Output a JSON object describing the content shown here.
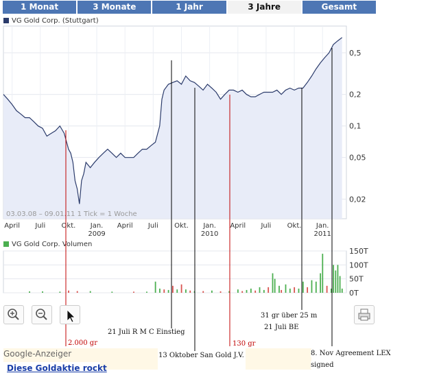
{
  "tabs": [
    {
      "label": "1 Monat",
      "active": false
    },
    {
      "label": "3 Monate",
      "active": false
    },
    {
      "label": "1 Jahr",
      "active": false
    },
    {
      "label": "3 Jahre",
      "active": true
    },
    {
      "label": "Gesamt",
      "active": false
    }
  ],
  "price_legend": "VG Gold Corp. (Stuttgart)",
  "volume_legend": "VG Gold Corp. Volumen",
  "range_note": "03.03.08 – 09.01.11   1 Tick = 1 Woche",
  "ads_label": "Google-Anzeiger",
  "ad_headline": "Diese Goldaktie rockt",
  "annotations": {
    "a_2000": "2.000 gr",
    "a_rmc": "21 Juli R M C Einstieg",
    "a_sangold": "13 Oktober San Gold J.V.",
    "a_130": "130 gr",
    "a_31gr": "31 gr über 25 m",
    "a_be": "21 Juli BE",
    "a_nov1": "8. Nov Agreement LEX",
    "a_nov2": "signed"
  },
  "colors": {
    "tab": "#4d76b4",
    "line": "#2b3b6b",
    "fill": "#e8ecf8",
    "vol_up": "#4caf50",
    "vol_down": "#d9534f",
    "annot_red": "#c00000"
  },
  "chart_data": [
    {
      "type": "area",
      "series": [
        {
          "name": "VG Gold Corp. (Stuttgart)"
        }
      ],
      "x_tick_labels": [
        "April",
        "Juli",
        "Okt.",
        "Jan.",
        "April",
        "Juli",
        "Okt.",
        "Jan.",
        "April",
        "Juli",
        "Okt.",
        "Jan."
      ],
      "year_labels": [
        "2009",
        "2010",
        "2011"
      ],
      "y_scale": "log",
      "y_ticks": [
        0.02,
        0.05,
        0.1,
        0.2,
        0.5
      ],
      "y_tick_labels": [
        "0,02",
        "0,05",
        "0,1",
        "0,2",
        "0,5"
      ],
      "grid": true,
      "x_weeks": [
        0,
        2,
        4,
        6,
        8,
        10,
        12,
        14,
        16,
        18,
        20,
        22,
        24,
        26,
        28,
        30,
        31,
        32,
        33,
        34,
        35,
        36,
        37,
        38,
        40,
        42,
        44,
        46,
        48,
        50,
        52,
        54,
        56,
        58,
        60,
        62,
        64,
        66,
        68,
        70,
        72,
        73,
        74,
        76,
        78,
        80,
        82,
        84,
        86,
        88,
        90,
        92,
        94,
        96,
        98,
        100,
        102,
        104,
        106,
        108,
        110,
        112,
        114,
        116,
        118,
        120,
        122,
        124,
        126,
        128,
        130,
        132,
        134,
        136,
        138,
        140,
        142,
        144,
        146,
        148,
        150,
        152,
        154,
        156
      ],
      "values": [
        0.2,
        0.18,
        0.16,
        0.14,
        0.13,
        0.12,
        0.12,
        0.11,
        0.1,
        0.095,
        0.08,
        0.085,
        0.09,
        0.1,
        0.085,
        0.06,
        0.055,
        0.045,
        0.03,
        0.025,
        0.018,
        0.03,
        0.035,
        0.045,
        0.04,
        0.045,
        0.05,
        0.055,
        0.06,
        0.055,
        0.05,
        0.055,
        0.05,
        0.05,
        0.05,
        0.055,
        0.06,
        0.06,
        0.065,
        0.07,
        0.1,
        0.18,
        0.22,
        0.25,
        0.26,
        0.27,
        0.25,
        0.3,
        0.27,
        0.26,
        0.24,
        0.22,
        0.25,
        0.23,
        0.21,
        0.18,
        0.2,
        0.22,
        0.22,
        0.21,
        0.22,
        0.2,
        0.19,
        0.19,
        0.2,
        0.21,
        0.21,
        0.21,
        0.22,
        0.2,
        0.22,
        0.23,
        0.22,
        0.23,
        0.23,
        0.26,
        0.3,
        0.35,
        0.4,
        0.45,
        0.5,
        0.6,
        0.65,
        0.7
      ]
    },
    {
      "type": "bar",
      "series": [
        {
          "name": "VG Gold Corp. Volumen"
        }
      ],
      "y_ticks": [
        0,
        50000,
        100000,
        150000
      ],
      "y_tick_labels": [
        "0T",
        "50T",
        "100T",
        "150T"
      ],
      "bars": [
        {
          "week": 12,
          "value": 5000,
          "dir": "up"
        },
        {
          "week": 18,
          "value": 5000,
          "dir": "up"
        },
        {
          "week": 26,
          "value": 4000,
          "dir": "up"
        },
        {
          "week": 30,
          "value": 8000,
          "dir": "down"
        },
        {
          "week": 34,
          "value": 6000,
          "dir": "down"
        },
        {
          "week": 40,
          "value": 6000,
          "dir": "up"
        },
        {
          "week": 50,
          "value": 4000,
          "dir": "up"
        },
        {
          "week": 60,
          "value": 4000,
          "dir": "down"
        },
        {
          "week": 66,
          "value": 4000,
          "dir": "up"
        },
        {
          "week": 70,
          "value": 40000,
          "dir": "up"
        },
        {
          "week": 72,
          "value": 15000,
          "dir": "up"
        },
        {
          "week": 74,
          "value": 12000,
          "dir": "down"
        },
        {
          "week": 76,
          "value": 10000,
          "dir": "up"
        },
        {
          "week": 78,
          "value": 25000,
          "dir": "down"
        },
        {
          "week": 80,
          "value": 12000,
          "dir": "up"
        },
        {
          "week": 82,
          "value": 30000,
          "dir": "down"
        },
        {
          "week": 84,
          "value": 12000,
          "dir": "up"
        },
        {
          "week": 86,
          "value": 8000,
          "dir": "down"
        },
        {
          "week": 88,
          "value": 6000,
          "dir": "up"
        },
        {
          "week": 92,
          "value": 6000,
          "dir": "down"
        },
        {
          "week": 96,
          "value": 8000,
          "dir": "up"
        },
        {
          "week": 100,
          "value": 5000,
          "dir": "down"
        },
        {
          "week": 104,
          "value": 6000,
          "dir": "up"
        },
        {
          "week": 108,
          "value": 12000,
          "dir": "up"
        },
        {
          "week": 110,
          "value": 6000,
          "dir": "down"
        },
        {
          "week": 112,
          "value": 10000,
          "dir": "up"
        },
        {
          "week": 114,
          "value": 15000,
          "dir": "up"
        },
        {
          "week": 116,
          "value": 8000,
          "dir": "down"
        },
        {
          "week": 118,
          "value": 20000,
          "dir": "up"
        },
        {
          "week": 120,
          "value": 10000,
          "dir": "up"
        },
        {
          "week": 122,
          "value": 20000,
          "dir": "down"
        },
        {
          "week": 124,
          "value": 70000,
          "dir": "up"
        },
        {
          "week": 125,
          "value": 50000,
          "dir": "up"
        },
        {
          "week": 127,
          "value": 25000,
          "dir": "up"
        },
        {
          "week": 128,
          "value": 10000,
          "dir": "down"
        },
        {
          "week": 130,
          "value": 30000,
          "dir": "up"
        },
        {
          "week": 132,
          "value": 15000,
          "dir": "up"
        },
        {
          "week": 134,
          "value": 20000,
          "dir": "down"
        },
        {
          "week": 136,
          "value": 15000,
          "dir": "up"
        },
        {
          "week": 138,
          "value": 40000,
          "dir": "up"
        },
        {
          "week": 140,
          "value": 20000,
          "dir": "down"
        },
        {
          "week": 142,
          "value": 45000,
          "dir": "up"
        },
        {
          "week": 144,
          "value": 40000,
          "dir": "up"
        },
        {
          "week": 146,
          "value": 70000,
          "dir": "up"
        },
        {
          "week": 147,
          "value": 140000,
          "dir": "up"
        },
        {
          "week": 149,
          "value": 25000,
          "dir": "down"
        },
        {
          "week": 151,
          "value": 15000,
          "dir": "up"
        },
        {
          "week": 152,
          "value": 100000,
          "dir": "up"
        },
        {
          "week": 153,
          "value": 80000,
          "dir": "up"
        },
        {
          "week": 154,
          "value": 100000,
          "dir": "up"
        },
        {
          "week": 155,
          "value": 60000,
          "dir": "up"
        },
        {
          "week": 156,
          "value": 15000,
          "dir": "up"
        }
      ]
    }
  ]
}
